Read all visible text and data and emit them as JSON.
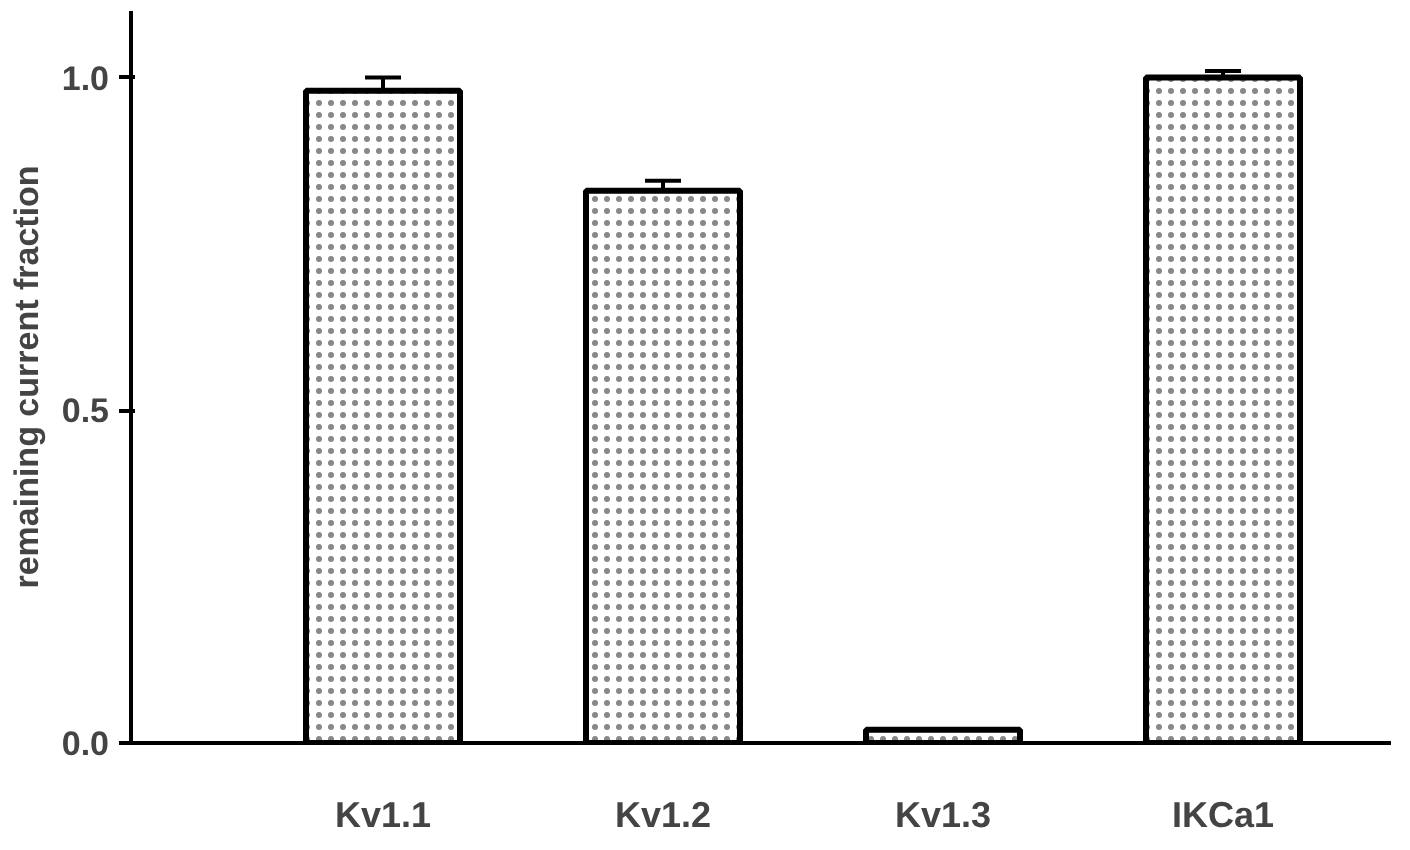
{
  "chart_data": {
    "type": "bar",
    "ylabel": "remaining current fraction",
    "categories": [
      "Kv1.1",
      "Kv1.2",
      "Kv1.3",
      "IKCa1"
    ],
    "values": [
      0.98,
      0.83,
      0.02,
      1.0
    ],
    "errors": [
      0.02,
      0.015,
      null,
      0.01
    ],
    "color": "#ffffff",
    "ylim": [
      0,
      1.1
    ],
    "yticks": [
      {
        "value": 0,
        "label": "0.0"
      },
      {
        "value": 0.5,
        "label": "0.5"
      },
      {
        "value": 1,
        "label": "1.0"
      }
    ],
    "grid": false
  }
}
